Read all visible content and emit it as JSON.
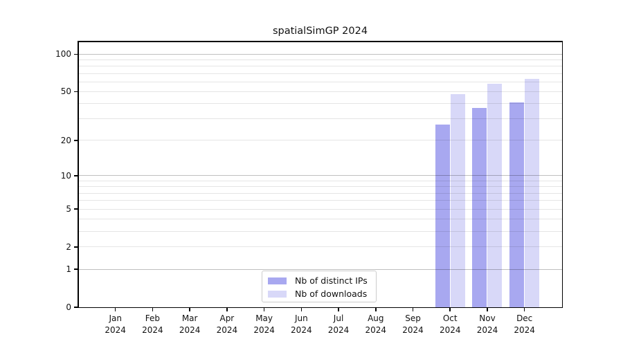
{
  "chart_data": {
    "type": "bar",
    "title": "spatialSimGP 2024",
    "x_tick_year": "2024",
    "categories": [
      "Jan",
      "Feb",
      "Mar",
      "Apr",
      "May",
      "Jun",
      "Jul",
      "Aug",
      "Sep",
      "Oct",
      "Nov",
      "Dec"
    ],
    "series": [
      {
        "name": "Nb of distinct IPs",
        "key": "distinct-ips",
        "color": "#a8a8f0",
        "values": [
          null,
          null,
          null,
          null,
          null,
          null,
          null,
          null,
          null,
          27,
          37,
          41
        ]
      },
      {
        "name": "Nb of downloads",
        "key": "downloads",
        "color": "#d8d8f8",
        "values": [
          null,
          null,
          null,
          null,
          null,
          null,
          null,
          null,
          null,
          48,
          58,
          63
        ]
      }
    ],
    "xlabel": "",
    "ylabel": "",
    "yscale": "log1p",
    "ylim": [
      0,
      126
    ],
    "y_ticks": [
      0,
      1,
      2,
      5,
      10,
      20,
      50,
      100
    ],
    "grid": {
      "on": true,
      "drawn_above_bars": true,
      "major": [
        1,
        10,
        100
      ],
      "minor": [
        2,
        3,
        4,
        5,
        6,
        7,
        8,
        9,
        20,
        30,
        40,
        50,
        60,
        70,
        80,
        90
      ]
    },
    "legend": {
      "position": "lower center",
      "entries": [
        "Nb of distinct IPs",
        "Nb of downloads"
      ]
    },
    "colors": {
      "bar_distinct_ips": "#a8a8f0",
      "bar_downloads": "#d8d8f8",
      "grid_major": "rgba(0,0,0,0.25)",
      "grid_minor": "rgba(0,0,0,0.10)",
      "spine": "#000000",
      "text": "#111111",
      "background": "#ffffff"
    }
  }
}
